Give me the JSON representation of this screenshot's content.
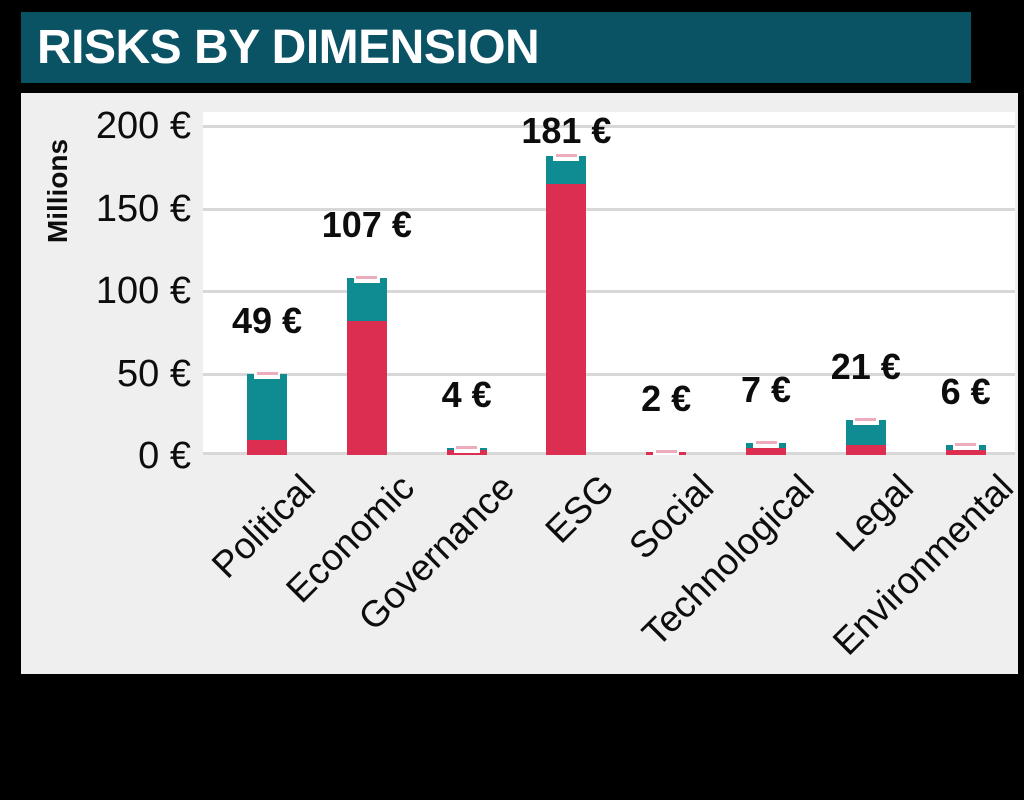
{
  "header": {
    "title": "RISKS BY DIMENSION"
  },
  "colors": {
    "banner_teal": "#0a5365",
    "bar_red": "#dc2e51",
    "bar_teal": "#0e8c92",
    "marker_pink": "#edacbb",
    "panel_gray": "#efefef",
    "plot_white": "#ffffff",
    "gridline_gray": "#d8d8d8",
    "text_black": "#0d0d0d",
    "page_black": "#000000"
  },
  "chart_data": {
    "type": "bar",
    "stacked": true,
    "title": "RISKS BY DIMENSION",
    "ylabel": "Millions",
    "unit": "€ (millions)",
    "ylim": [
      0,
      208
    ],
    "grid": true,
    "legend": false,
    "y_ticks": [
      {
        "label": "200 €",
        "value": 200
      },
      {
        "label": "150 €",
        "value": 150
      },
      {
        "label": "100 €",
        "value": 100
      },
      {
        "label": "50 €",
        "value": 50
      },
      {
        "label": "0 €",
        "value": 0
      }
    ],
    "categories": [
      "Political",
      "Economic",
      "Governance",
      "ESG",
      "Social",
      "Technological",
      "Legal",
      "Environmental"
    ],
    "totals": [
      49,
      107,
      4,
      181,
      2,
      7,
      21,
      6
    ],
    "total_labels": [
      "49 €",
      "107 €",
      "4 €",
      "181 €",
      "2 €",
      "7 €",
      "21 €",
      "6 €"
    ],
    "series": [
      {
        "name": "red-segment",
        "color": "#dc2e51",
        "values": [
          9,
          81,
          3,
          164,
          2,
          4,
          6,
          3
        ]
      },
      {
        "name": "teal-segment",
        "color": "#0e8c92",
        "values": [
          40,
          26,
          1,
          17,
          0,
          3,
          15,
          3
        ]
      }
    ],
    "top_marker": {
      "style": "short-line-in-white-notch",
      "color": "#edacbb"
    }
  }
}
